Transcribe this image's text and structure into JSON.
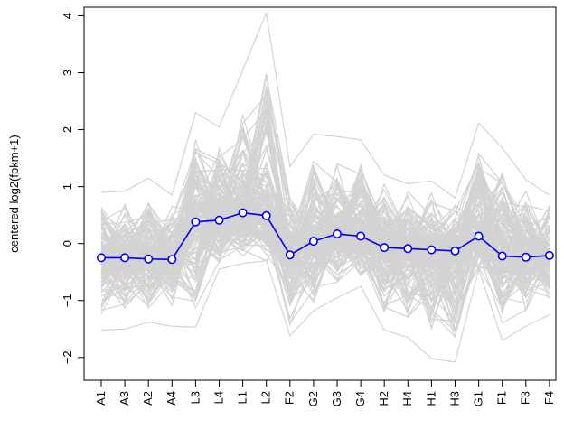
{
  "chart_data": {
    "type": "line",
    "title": "",
    "xlabel": "",
    "ylabel": "centered log2(fpkm+1)",
    "categories": [
      "A1",
      "A3",
      "A2",
      "A4",
      "L3",
      "L4",
      "L1",
      "L2",
      "F2",
      "G2",
      "G3",
      "G4",
      "H2",
      "H4",
      "H1",
      "H3",
      "G1",
      "F1",
      "F3",
      "F4"
    ],
    "ylim": [
      -2.4,
      4.15
    ],
    "yticks": [
      -2,
      -1,
      0,
      1,
      2,
      3,
      4
    ],
    "ytick_labels": [
      "−2",
      "−1",
      "0",
      "1",
      "2",
      "3",
      "4"
    ],
    "grid": false,
    "legend": "none",
    "background_series": {
      "color": "#d3d3d3",
      "upper_envelope": [
        0.9,
        0.92,
        1.15,
        0.85,
        2.3,
        2.05,
        3.05,
        4.05,
        1.35,
        1.92,
        1.88,
        1.82,
        1.2,
        1.05,
        1.1,
        0.8,
        2.12,
        1.68,
        1.12,
        0.85
      ],
      "lower_envelope": [
        -1.52,
        -1.5,
        -1.38,
        -1.45,
        -1.47,
        -0.45,
        -0.35,
        -0.3,
        -1.62,
        -1.18,
        -0.95,
        -0.75,
        -1.52,
        -1.65,
        -2.02,
        -2.08,
        -0.45,
        -1.7,
        -1.45,
        -1.25
      ],
      "mean": [
        -0.25,
        -0.25,
        -0.27,
        -0.28,
        0.38,
        0.41,
        0.54,
        0.49,
        -0.2,
        0.04,
        0.17,
        0.13,
        -0.07,
        -0.09,
        -0.11,
        -0.13,
        0.13,
        -0.22,
        -0.24,
        -0.21
      ]
    },
    "series": [
      {
        "color": "#0000ff",
        "values": [
          -0.25,
          -0.25,
          -0.27,
          -0.28,
          0.38,
          0.41,
          0.54,
          0.49,
          -0.2,
          0.04,
          0.17,
          0.13,
          -0.07,
          -0.09,
          -0.11,
          -0.13,
          0.13,
          -0.22,
          -0.24,
          -0.21
        ]
      }
    ]
  }
}
